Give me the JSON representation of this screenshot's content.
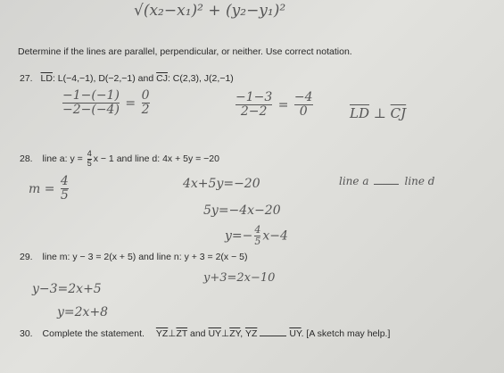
{
  "top_note": "√(x₂−x₁)² + (y₂−y₁)²",
  "instructions": "Determine if the lines are parallel, perpendicular, or neither.  Use correct notation.",
  "problems": [
    {
      "text": [
        "27.",
        "LD",
        ": L(−4,−1), D(−2,−1) and ",
        "CJ",
        ": C(2,3), J(2,−1)"
      ],
      "work": [
        "−1−(−1)",
        "−2−(−4)",
        "=",
        "0",
        "2",
        "−1−3",
        "2−2",
        "=",
        "−4",
        "0",
        "LD",
        "⊥",
        "CJ"
      ]
    },
    {
      "text": [
        "28.",
        "line a: y =",
        "4",
        "5",
        "x − 1 and line d: 4x + 5y = −20"
      ],
      "work": [
        "m =",
        "4",
        "5",
        "4x+5y=−20",
        "5y=−4x−20",
        "y=−",
        "4",
        "5",
        "x−4",
        "line a",
        "line d"
      ]
    },
    {
      "text": [
        "29.",
        "line m: y − 3 = 2(x + 5) and line n: y + 3 = 2(x − 5)"
      ],
      "work": [
        "y−3=2x+5",
        "y=2x+8",
        "y+3=2x−10"
      ]
    },
    {
      "text": [
        "30.",
        "Complete the statement.",
        "YZ",
        "⊥",
        "ZT",
        "and",
        "UY",
        "⊥",
        "ZY",
        ",",
        "YZ",
        "UY",
        ". [A sketch may help.]"
      ]
    }
  ]
}
